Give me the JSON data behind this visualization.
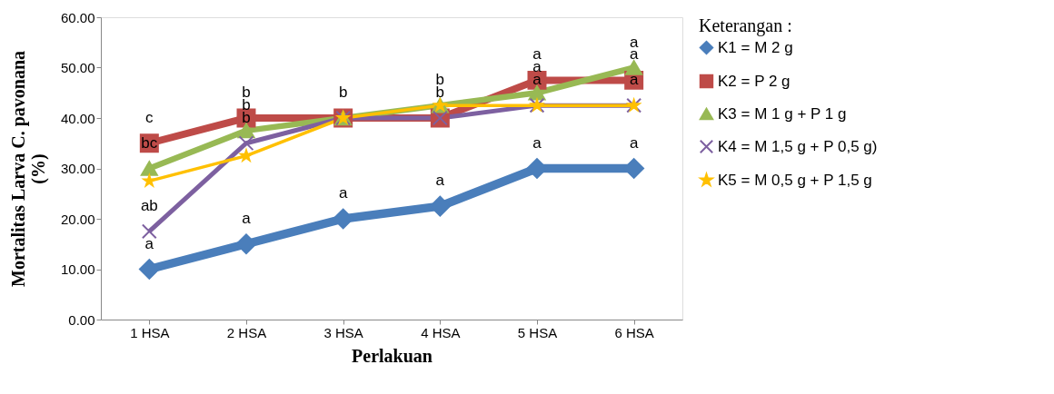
{
  "chart_data": {
    "type": "line",
    "xlabel": "Perlakuan",
    "ylabel": "Mortalitas Larva C. pavonana\n(%)",
    "legend_title": "Keterangan :",
    "legend": "right",
    "grid": false,
    "line_style": "solid",
    "categories": [
      "1 HSA",
      "2 HSA",
      "3 HSA",
      "4 HSA",
      "5 HSA",
      "6 HSA"
    ],
    "ylim": [
      0,
      60
    ],
    "yticks": [
      {
        "value": 0,
        "label": "0.00"
      },
      {
        "value": 10,
        "label": "10.00"
      },
      {
        "value": 20,
        "label": "20.00"
      },
      {
        "value": 30,
        "label": "30.00"
      },
      {
        "value": 40,
        "label": "40.00"
      },
      {
        "value": 50,
        "label": "50.00"
      },
      {
        "value": 60,
        "label": "60.00"
      }
    ],
    "series": [
      {
        "name": "K1 = M 2 g",
        "color": "#4a7ebb",
        "marker": "diamond",
        "values": [
          10,
          15,
          20,
          22.5,
          30,
          30
        ],
        "value_labels": [
          "a",
          "a",
          "a",
          "a",
          "a",
          "a"
        ]
      },
      {
        "name": "K2 = P 2 g",
        "color": "#be4b48",
        "marker": "square",
        "values": [
          35,
          40,
          40,
          40,
          47.5,
          47.5
        ],
        "value_labels": [
          "c",
          "b",
          "b",
          "b",
          "a",
          "a"
        ]
      },
      {
        "name": "K3 = M 1 g + P 1 g",
        "color": "#98b954",
        "marker": "triangle",
        "values": [
          30,
          37.5,
          40,
          42.5,
          45,
          50
        ],
        "value_labels": [
          "bc",
          "b",
          null,
          "b",
          "a",
          "a"
        ]
      },
      {
        "name": "K4 = M 1,5 g + P 0,5 g)",
        "color": "#7d60a0",
        "marker": "cross",
        "values": [
          17.5,
          35,
          40,
          40,
          42.5,
          42.5
        ],
        "value_labels": [
          "ab",
          "b",
          null,
          null,
          "a",
          "a"
        ]
      },
      {
        "name": "K5 = M 0,5 g + P 1,5 g",
        "color": "#ffc000",
        "marker": "star",
        "values": [
          27.5,
          32.5,
          40,
          42.5,
          42.5,
          42.5
        ]
      }
    ]
  }
}
